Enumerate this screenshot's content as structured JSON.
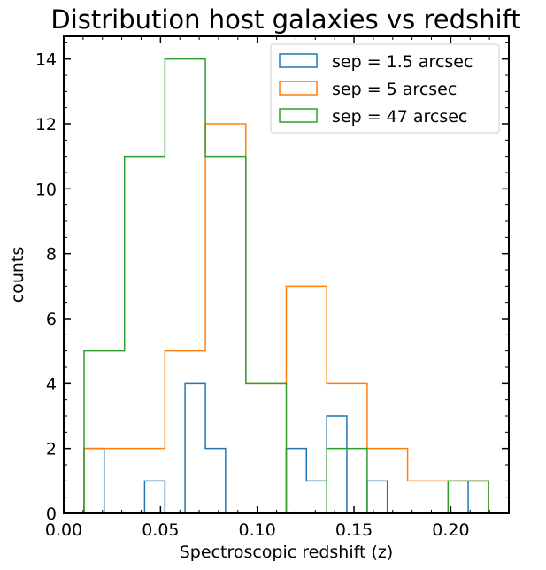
{
  "chart_data": {
    "type": "histogram",
    "title": "Distribution host galaxies vs redshift",
    "xlabel": "Spectroscopic redshift (z)",
    "ylabel": "counts",
    "xlim": [
      0.0,
      0.23
    ],
    "ylim": [
      0,
      14.7
    ],
    "x_ticks": [
      0.0,
      0.05,
      0.1,
      0.15,
      0.2
    ],
    "x_tick_labels": [
      "0.00",
      "0.05",
      "0.10",
      "0.15",
      "0.20"
    ],
    "y_ticks": [
      0,
      2,
      4,
      6,
      8,
      10,
      12,
      14
    ],
    "y_tick_labels": [
      "0",
      "2",
      "4",
      "6",
      "8",
      "10",
      "12",
      "14"
    ],
    "grid": false,
    "legend_position": "top-right",
    "series": [
      {
        "name": "sep = 1.5 arcsec",
        "color": "#1f77b4",
        "bin_edges": [
          0.0105,
          0.0209,
          0.0314,
          0.0418,
          0.0523,
          0.0627,
          0.0732,
          0.0836,
          0.0941,
          0.1045,
          0.115,
          0.1254,
          0.1359,
          0.1463,
          0.1568,
          0.1672,
          0.1777,
          0.1881,
          0.1986,
          0.209,
          0.2195
        ],
        "counts": [
          2,
          0,
          0,
          1,
          0,
          4,
          2,
          0,
          0,
          0,
          2,
          1,
          3,
          0,
          1,
          0,
          0,
          0,
          0,
          1
        ]
      },
      {
        "name": "sep = 5 arcsec",
        "color": "#ff7f0e",
        "bin_edges": [
          0.0105,
          0.0314,
          0.0523,
          0.0732,
          0.0941,
          0.115,
          0.1359,
          0.1568,
          0.1777,
          0.1986,
          0.2195
        ],
        "counts": [
          2,
          2,
          5,
          12,
          4,
          7,
          4,
          2,
          1,
          1
        ]
      },
      {
        "name": "sep = 47 arcsec",
        "color": "#2ca02c",
        "bin_edges": [
          0.0105,
          0.0314,
          0.0523,
          0.0732,
          0.0941,
          0.115,
          0.1359,
          0.1568,
          0.1777,
          0.1986,
          0.2195
        ],
        "counts": [
          5,
          11,
          14,
          11,
          4,
          0,
          2,
          0,
          0,
          1
        ]
      }
    ]
  }
}
